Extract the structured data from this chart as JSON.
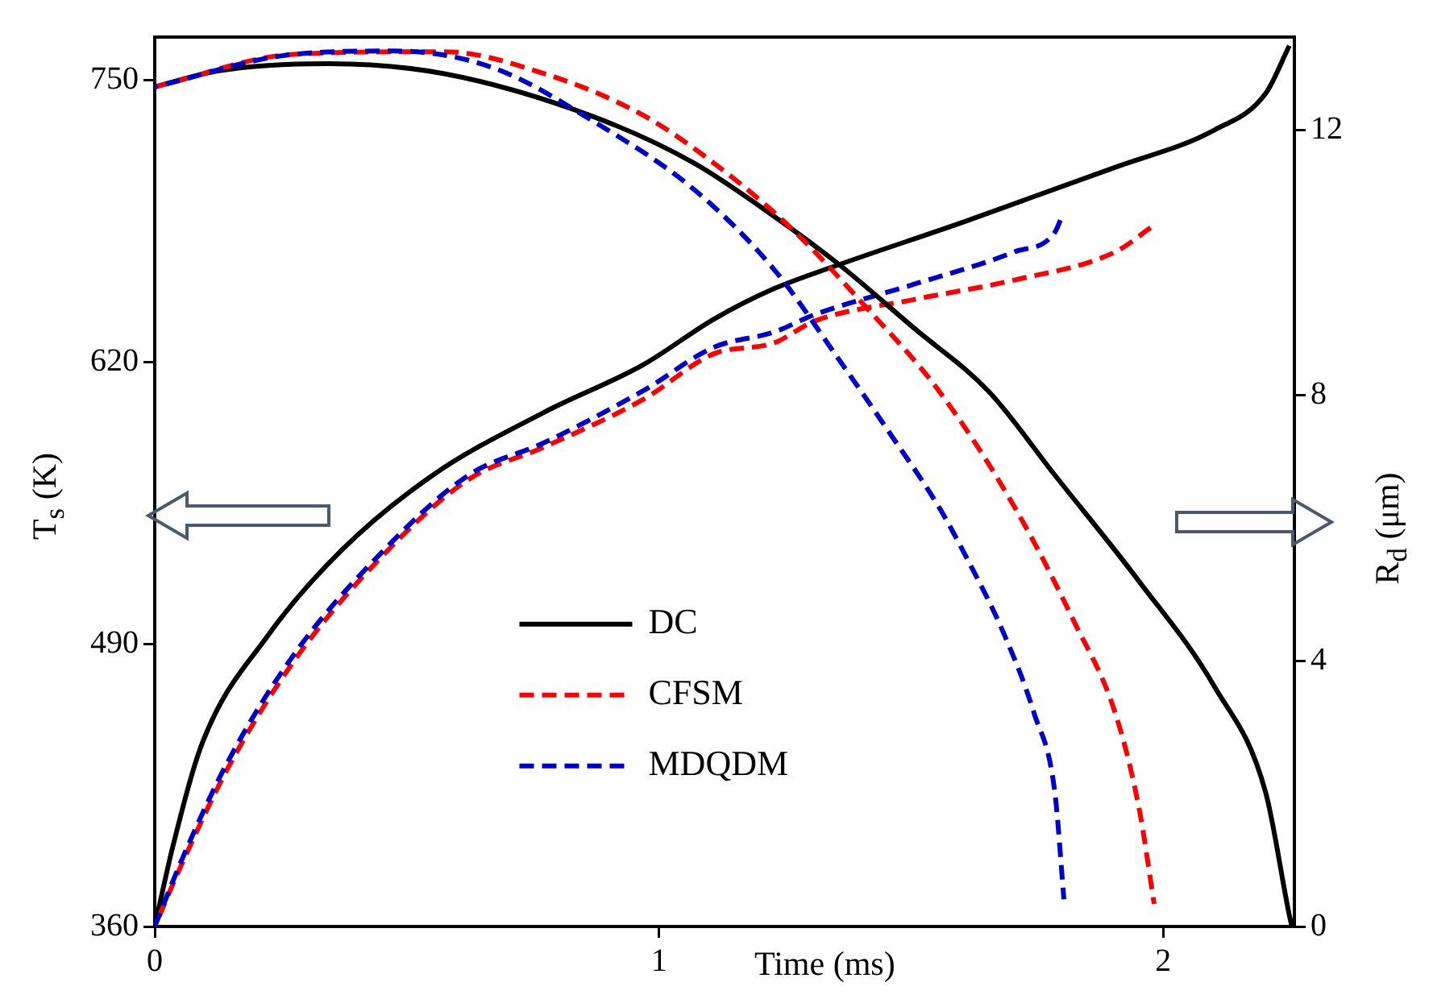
{
  "chart_data": {
    "type": "line",
    "xlabel": "Time (ms)",
    "ylabel": "T$_{s}$ (K)",
    "y2label": "R$_{d}$ (μm)",
    "xlim": [
      0,
      2.26
    ],
    "xticks": [
      0,
      1,
      2
    ],
    "ylim": [
      360,
      770
    ],
    "yticks": [
      360,
      490,
      620,
      750
    ],
    "y2lim": [
      0,
      13.4
    ],
    "y2ticks": [
      0,
      4,
      8,
      12
    ],
    "grid": false,
    "legend": "center",
    "marker": "none",
    "series": [
      {
        "name": "DC",
        "color": "#000000",
        "line_style": "solid",
        "x": [
          0,
          0.036,
          0.095,
          0.224,
          0.373,
          0.551,
          0.772,
          0.969,
          1.109,
          1.228,
          1.356,
          1.607,
          1.905,
          2.1,
          2.203,
          2.25
        ],
        "values": [
          360,
          397,
          445,
          494,
          534,
          568,
          597,
          619,
          640,
          654,
          665,
          685,
          710,
          727,
          744,
          766
        ]
      },
      {
        "name": "CFSM",
        "color": "#ff0000",
        "line_style": "dashed",
        "x": [
          0,
          0.056,
          0.145,
          0.275,
          0.444,
          0.622,
          0.772,
          0.969,
          1.109,
          1.228,
          1.308,
          1.505,
          1.705,
          1.905,
          1.98
        ],
        "values": [
          360,
          390,
          433,
          482,
          529,
          566,
          581,
          603,
          624,
          629,
          639,
          649,
          658,
          671,
          683
        ]
      },
      {
        "name": "MDQDM",
        "color": "#0000cc",
        "line_style": "dashed",
        "x": [
          0,
          0.056,
          0.145,
          0.275,
          0.444,
          0.622,
          0.772,
          0.969,
          1.109,
          1.228,
          1.308,
          1.505,
          1.705,
          1.785,
          1.8
        ],
        "values": [
          360,
          392,
          436,
          485,
          531,
          568,
          583,
          607,
          627,
          634,
          642,
          656,
          671,
          680,
          688
        ]
      },
      {
        "color": "#000000",
        "line_style": "solid",
        "axis": "y2",
        "x": [
          0,
          0.125,
          0.343,
          0.572,
          0.87,
          1.07,
          1.228,
          1.356,
          1.505,
          1.654,
          1.785,
          1.952,
          2.101,
          2.203,
          2.25,
          2.255
        ],
        "values": [
          12.65,
          12.89,
          13.0,
          12.85,
          12.2,
          11.5,
          10.7,
          9.98,
          9.02,
          8.06,
          6.8,
          5.2,
          3.62,
          2.02,
          0.17,
          0
        ]
      },
      {
        "color": "#ff0000",
        "line_style": "dashed",
        "axis": "y2",
        "x": [
          0,
          0.275,
          0.572,
          0.772,
          0.969,
          1.109,
          1.258,
          1.407,
          1.555,
          1.705,
          1.824,
          1.905,
          1.952,
          1.982
        ],
        "values": [
          12.65,
          13.14,
          13.18,
          12.85,
          12.22,
          11.5,
          10.55,
          9.36,
          8.07,
          6.32,
          4.58,
          3.21,
          1.78,
          0.34
        ]
      },
      {
        "color": "#0000cc",
        "line_style": "dashed",
        "axis": "y2",
        "x": [
          0,
          0.275,
          0.474,
          0.67,
          0.87,
          1.07,
          1.228,
          1.356,
          1.457,
          1.555,
          1.607,
          1.684,
          1.744,
          1.785,
          1.803
        ],
        "values": [
          12.65,
          13.14,
          13.19,
          12.94,
          12.13,
          11.1,
          9.9,
          8.55,
          7.44,
          6.32,
          5.6,
          4.41,
          3.21,
          2.02,
          0.41
        ]
      }
    ]
  }
}
